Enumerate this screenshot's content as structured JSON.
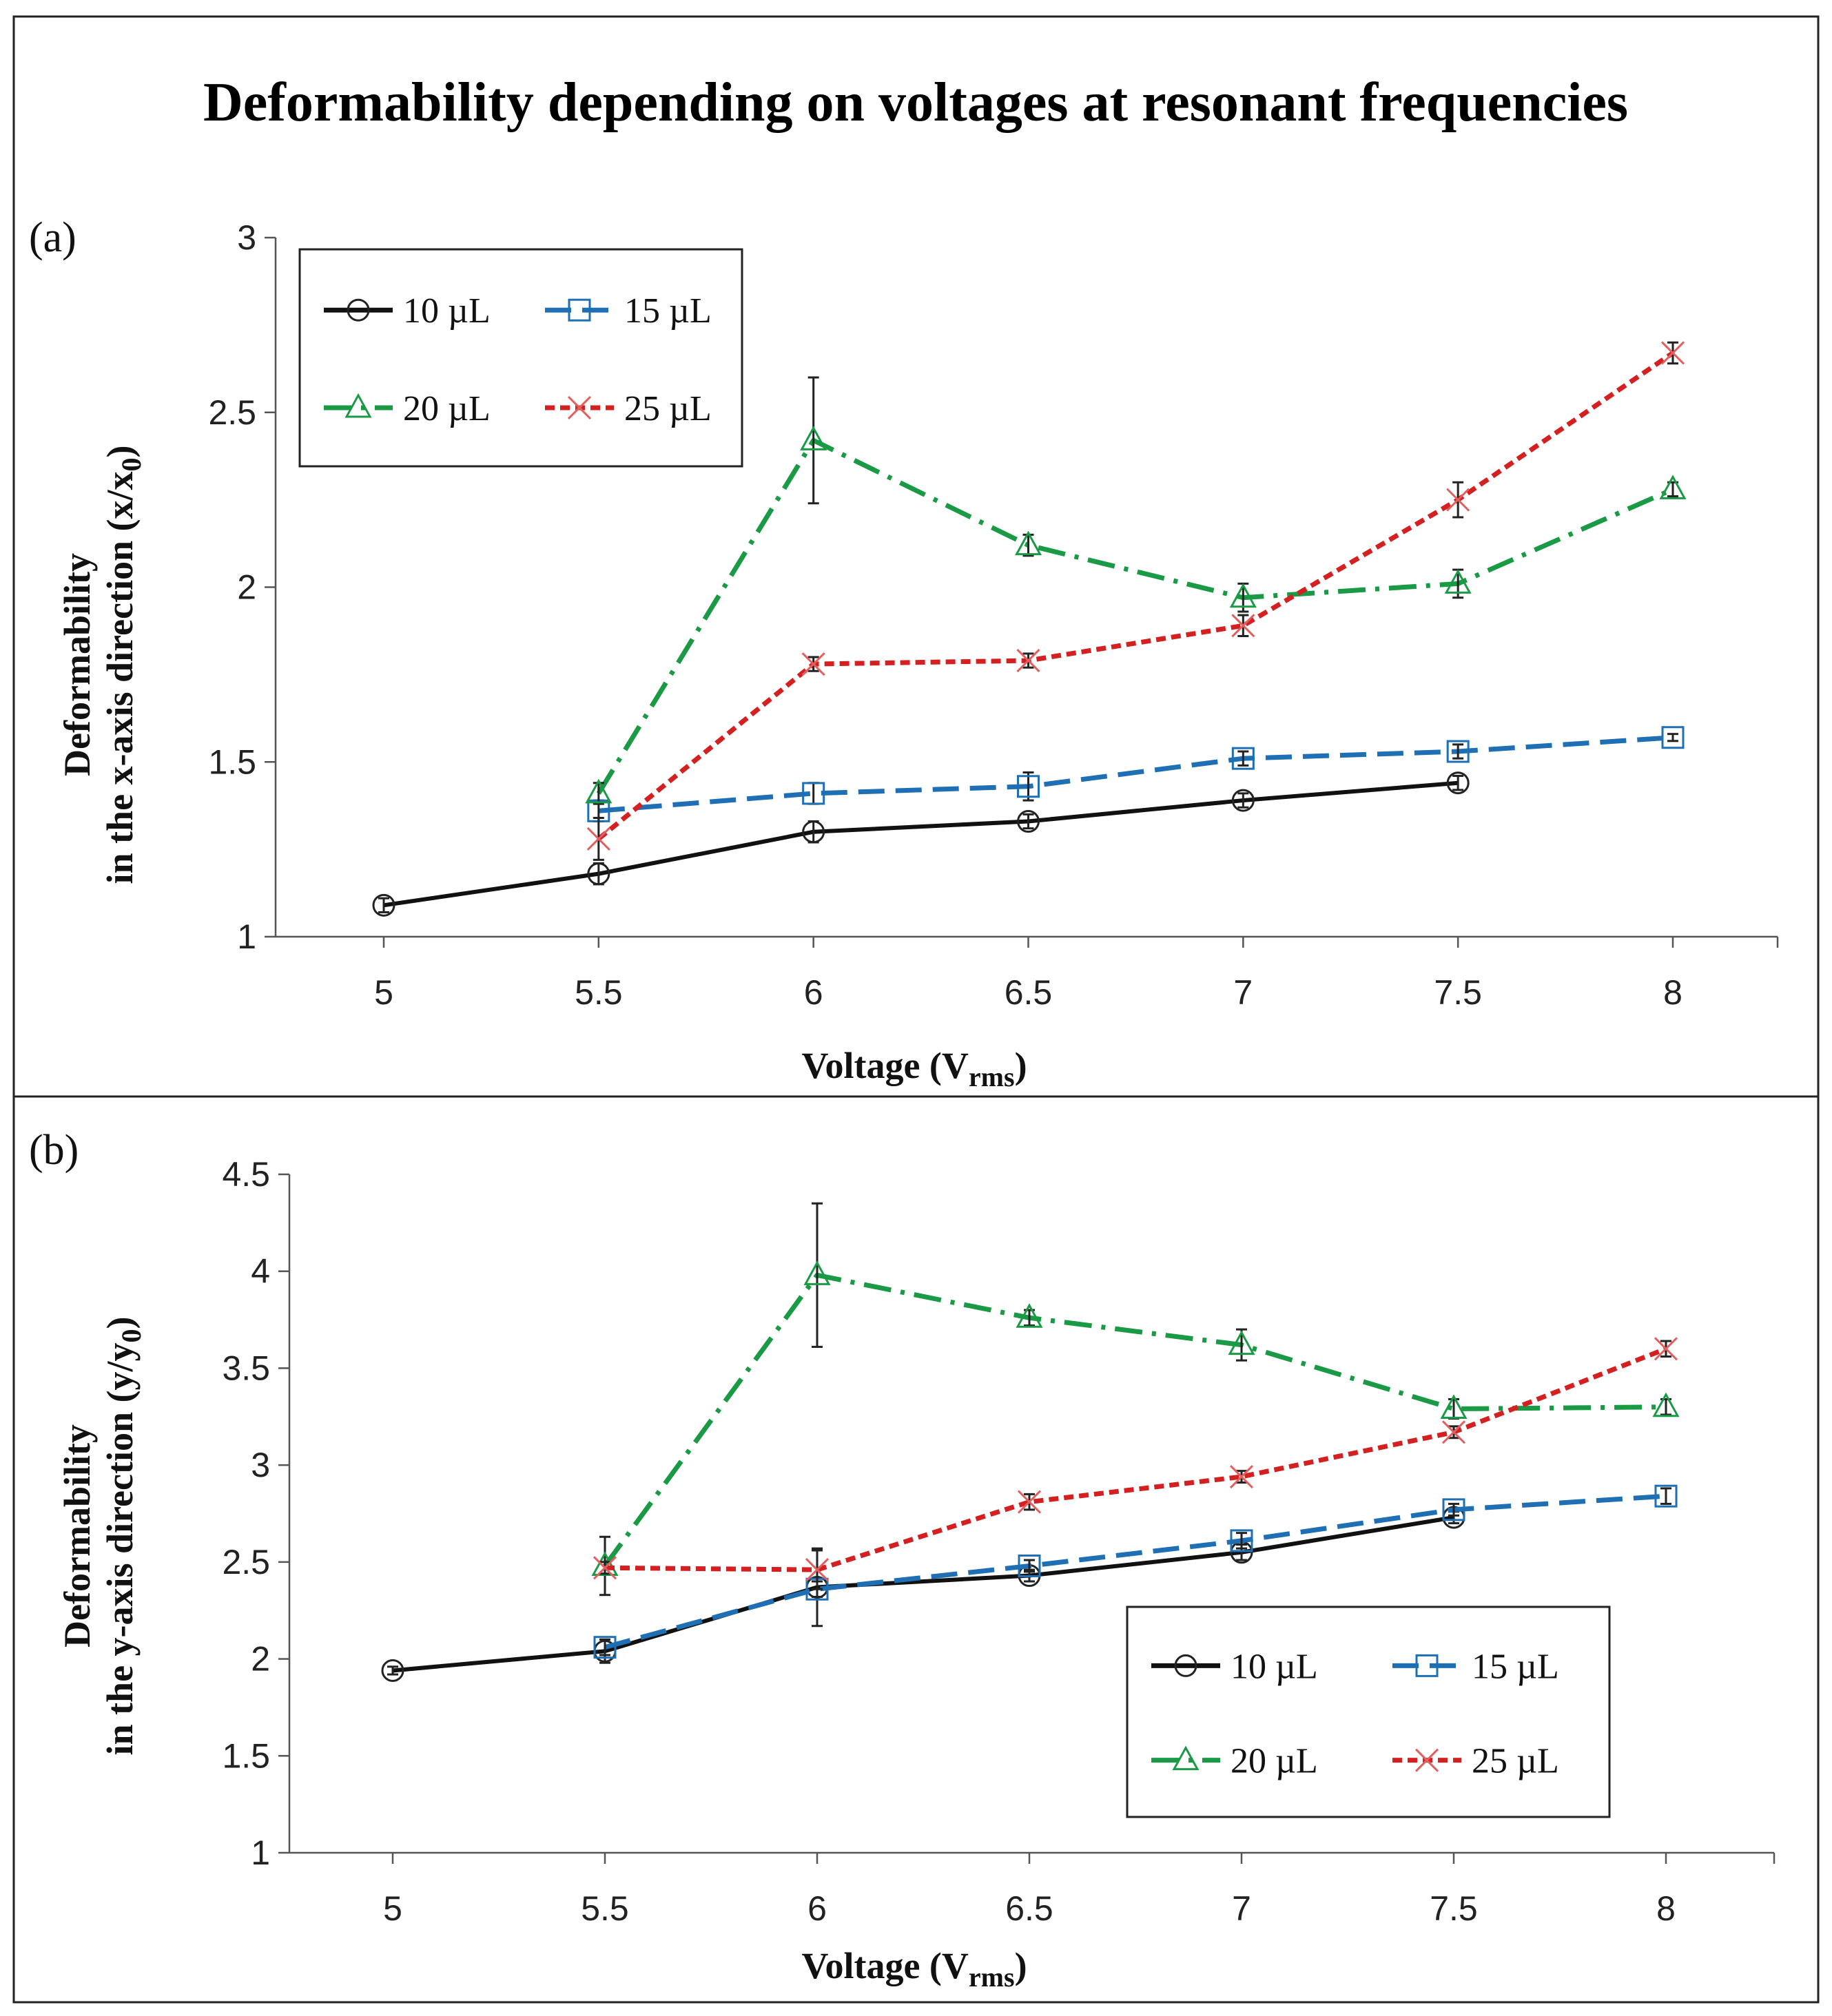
{
  "title": "Deformability depending on voltages at resonant frequencies",
  "colors": {
    "10uL": "#111111",
    "15uL": "#1f6fb5",
    "20uL": "#1a9a45",
    "25uL": "#d42020",
    "errorbar": "#222222"
  },
  "chart_data": [
    {
      "type": "line",
      "panel_label": "(a)",
      "title": "Deformability depending on voltages at resonant frequencies",
      "xlabel": "Voltage (V",
      "xlabel_sub": "rms",
      "xlabel_close": ")",
      "ylabel_line1": "Deformability",
      "ylabel_line2": "in the x-axis direction (x/x",
      "ylabel_sub": "0",
      "ylabel_close": ")",
      "x": [
        5,
        5.5,
        6,
        6.5,
        7,
        7.5,
        8
      ],
      "x_ticks": [
        "5",
        "5.5",
        "6",
        "6.5",
        "7",
        "7.5",
        "8"
      ],
      "ylim": [
        1,
        3
      ],
      "y_ticks": [
        "1",
        "1.5",
        "2",
        "2.5",
        "3"
      ],
      "grid": false,
      "legend_position": "top-left",
      "series": [
        {
          "name": "10 µL",
          "key": "10uL",
          "marker": "circle",
          "dash": "solid",
          "values": [
            1.09,
            1.18,
            1.3,
            1.33,
            1.39,
            1.44,
            null
          ],
          "errors": [
            0.02,
            0.03,
            0.03,
            0.02,
            0.02,
            0.02,
            null
          ]
        },
        {
          "name": "15 µL",
          "key": "15uL",
          "marker": "square",
          "dash": "dash",
          "values": [
            null,
            1.36,
            1.41,
            1.43,
            1.51,
            1.53,
            1.57
          ],
          "errors": [
            null,
            0.03,
            0.03,
            0.04,
            0.02,
            0.02,
            0.01
          ]
        },
        {
          "name": "20 µL",
          "key": "20uL",
          "marker": "triangle",
          "dash": "dashdot",
          "values": [
            null,
            1.41,
            2.42,
            2.12,
            1.97,
            2.01,
            2.28
          ],
          "errors": [
            null,
            0.03,
            0.18,
            0.03,
            0.04,
            0.04,
            0.02
          ]
        },
        {
          "name": "25 µL",
          "key": "25uL",
          "marker": "x",
          "dash": "dot",
          "values": [
            null,
            1.28,
            1.78,
            1.79,
            1.89,
            2.25,
            2.67
          ],
          "errors": [
            null,
            0.06,
            0.02,
            0.02,
            0.03,
            0.05,
            0.03
          ]
        }
      ]
    },
    {
      "type": "line",
      "panel_label": "(b)",
      "xlabel": "Voltage (V",
      "xlabel_sub": "rms",
      "xlabel_close": ")",
      "ylabel_line1": "Deformability",
      "ylabel_line2": "in the y-axis direction (y/y",
      "ylabel_sub": "0",
      "ylabel_close": ")",
      "x": [
        5,
        5.5,
        6,
        6.5,
        7,
        7.5,
        8
      ],
      "x_ticks": [
        "5",
        "5.5",
        "6",
        "6.5",
        "7",
        "7.5",
        "8"
      ],
      "ylim": [
        1,
        4.5
      ],
      "y_ticks": [
        "1",
        "1.5",
        "2",
        "2.5",
        "3",
        "3.5",
        "4",
        "4.5"
      ],
      "grid": false,
      "legend_position": "bottom-right",
      "series": [
        {
          "name": "10 µL",
          "key": "10uL",
          "marker": "circle",
          "dash": "solid",
          "values": [
            1.94,
            2.04,
            2.37,
            2.43,
            2.55,
            2.73,
            null
          ],
          "errors": [
            0.02,
            0.06,
            0.2,
            0.03,
            0.04,
            0.03,
            null
          ]
        },
        {
          "name": "15 µL",
          "key": "15uL",
          "marker": "square",
          "dash": "dash",
          "values": [
            null,
            2.06,
            2.36,
            2.48,
            2.61,
            2.77,
            2.84
          ],
          "errors": [
            null,
            0.04,
            0.04,
            0.03,
            0.04,
            0.03,
            0.04
          ]
        },
        {
          "name": "20 µL",
          "key": "20uL",
          "marker": "triangle",
          "dash": "dashdot",
          "values": [
            null,
            2.48,
            3.98,
            3.76,
            3.62,
            3.29,
            3.3
          ],
          "errors": [
            null,
            0.15,
            0.37,
            0.04,
            0.08,
            0.05,
            0.04
          ]
        },
        {
          "name": "25 µL",
          "key": "25uL",
          "marker": "x",
          "dash": "dot",
          "values": [
            null,
            2.47,
            2.46,
            2.81,
            2.94,
            3.17,
            3.6
          ],
          "errors": [
            null,
            0.03,
            0.1,
            0.04,
            0.03,
            0.03,
            0.04
          ]
        }
      ]
    }
  ]
}
